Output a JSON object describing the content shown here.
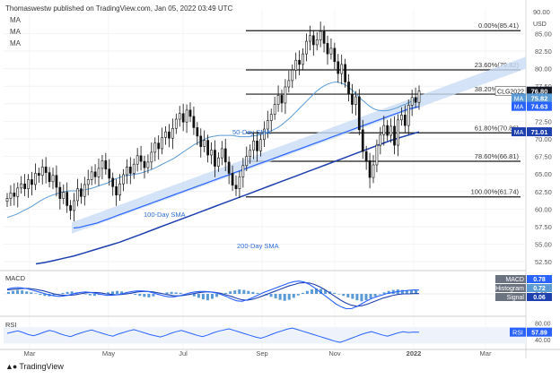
{
  "header": {
    "attribution": "Thomaswestw published on TradingView.com, Jan 05, 2022 03:49 UTC",
    "ma_labels": [
      "MA",
      "MA",
      "MA"
    ],
    "price_unit": "USD"
  },
  "logo": {
    "text": "TradingView"
  },
  "chart_data": {
    "type": "candlestick",
    "symbol": "CLG2022",
    "x_ticks": [
      "Mar",
      "May",
      "Jul",
      "Sep",
      "Nov",
      "2022",
      "Mar"
    ],
    "y_ticks": [
      "85.00",
      "82.50",
      "80.00",
      "77.50",
      "75.00",
      "72.50",
      "70.00",
      "67.50",
      "65.00",
      "62.50",
      "60.00",
      "57.50",
      "55.00",
      "52.50"
    ],
    "ylim": [
      51.5,
      88.5
    ],
    "fib_levels": [
      {
        "label": "0.00%(85.41)",
        "value": 85.41
      },
      {
        "label": "23.60%(79.82)",
        "value": 79.82
      },
      {
        "label": "38.20%(76.37)",
        "value": 76.37
      },
      {
        "label": "61.80%(70.86)",
        "value": 70.86
      },
      {
        "label": "78.60%(66.81)",
        "value": 66.81
      },
      {
        "label": "100.00%(61.74)",
        "value": 61.74
      }
    ],
    "annotations": {
      "sma50": "50-Day SMA",
      "sma100": "100-Day SMA",
      "sma200": "200-Day SMA"
    },
    "price_tags": [
      {
        "name": "CLG2022",
        "value": "76.80",
        "color": "#131722",
        "y": 76.8
      },
      {
        "name": "MA",
        "value": "75.82",
        "color": "#5b9bd5",
        "y": 75.82
      },
      {
        "name": "MA",
        "value": "74.63",
        "color": "#2962ff",
        "y": 74.63
      },
      {
        "name": "MA",
        "value": "71.01",
        "color": "#1e40af",
        "y": 71.01
      }
    ],
    "candles_close": [
      61.5,
      62.3,
      61.8,
      63.0,
      63.6,
      62.9,
      64.2,
      63.5,
      65.1,
      64.8,
      66.0,
      65.2,
      63.9,
      64.8,
      63.1,
      61.5,
      62.4,
      60.5,
      59.8,
      61.2,
      62.9,
      61.8,
      63.5,
      64.2,
      65.3,
      64.6,
      65.8,
      66.9,
      65.7,
      64.4,
      63.2,
      62.0,
      63.6,
      64.9,
      66.0,
      65.1,
      66.4,
      67.6,
      66.8,
      65.9,
      66.7,
      68.1,
      69.4,
      68.6,
      70.2,
      71.0,
      70.1,
      71.5,
      72.8,
      73.6,
      72.4,
      74.1,
      73.2,
      71.6,
      70.4,
      68.9,
      69.8,
      67.7,
      68.4,
      66.1,
      67.3,
      68.6,
      66.7,
      65.1,
      63.4,
      62.9,
      64.6,
      66.2,
      67.5,
      68.4,
      69.7,
      68.3,
      69.9,
      71.4,
      72.6,
      73.5,
      74.9,
      76.2,
      75.1,
      77.4,
      78.3,
      79.8,
      81.2,
      80.6,
      82.1,
      83.9,
      84.7,
      83.4,
      84.1,
      85.3,
      83.6,
      82.1,
      82.9,
      81.0,
      79.3,
      80.6,
      78.1,
      76.4,
      74.9,
      76.0,
      71.3,
      68.2,
      66.9,
      64.5,
      66.3,
      69.1,
      70.6,
      71.9,
      70.5,
      71.8,
      69.1,
      72.7,
      73.4,
      71.9,
      74.8,
      75.9,
      75.2,
      76.8
    ],
    "sma50": [
      58.8,
      59.0,
      59.2,
      59.5,
      59.8,
      60.1,
      60.4,
      60.8,
      61.2,
      61.5,
      61.8,
      62.0,
      62.2,
      62.4,
      62.5,
      62.6,
      62.6,
      62.6,
      62.7,
      62.8,
      62.9,
      63.1,
      63.3,
      63.5,
      63.7,
      64.0,
      64.3,
      64.5,
      64.7,
      64.8,
      64.9,
      65.0,
      65.1,
      65.3,
      65.5,
      65.7,
      66.0,
      66.3,
      66.6,
      66.9,
      67.2,
      67.6,
      68.0,
      68.4,
      68.8,
      69.2,
      69.5,
      69.8,
      70.1,
      70.3,
      70.4,
      70.5,
      70.5,
      70.5,
      70.5,
      70.4,
      70.3,
      70.3,
      70.3,
      70.4,
      70.5,
      70.6,
      70.8,
      71.0,
      71.3,
      71.6,
      72.0,
      72.5,
      73.0,
      73.6,
      74.2,
      74.8,
      75.4,
      76.0,
      76.6,
      77.1,
      77.5,
      77.8,
      78.0,
      78.1,
      78.0,
      77.8,
      77.4,
      76.9,
      76.3,
      75.7,
      75.2,
      74.7,
      74.3,
      74.1,
      74.0,
      74.0,
      74.1,
      74.3,
      74.5,
      74.8,
      75.0,
      75.3,
      75.6,
      75.8
    ],
    "sma100": [
      57.3,
      57.4,
      57.6,
      57.8,
      58.0,
      58.3,
      58.6,
      58.9,
      59.2,
      59.5,
      59.8,
      60.1,
      60.4,
      60.7,
      61.0,
      61.3,
      61.6,
      61.9,
      62.2,
      62.5,
      62.8,
      63.1,
      63.4,
      63.7,
      64.0,
      64.3,
      64.6,
      64.9,
      65.2,
      65.5,
      65.8,
      66.1,
      66.4,
      66.7,
      67.0,
      67.3,
      67.6,
      67.9,
      68.2,
      68.5,
      68.8,
      69.1,
      69.4,
      69.7,
      70.0,
      70.3,
      70.6,
      70.9,
      71.2,
      71.5,
      71.8,
      72.1,
      72.4,
      72.7,
      73.0,
      73.3,
      73.6,
      73.9,
      74.2,
      74.4,
      74.6
    ],
    "sma200": [
      52.2,
      52.4,
      52.7,
      53.0,
      53.3,
      53.7,
      54.1,
      54.5,
      54.9,
      55.3,
      55.8,
      56.3,
      56.8,
      57.3,
      57.8,
      58.3,
      58.8,
      59.3,
      59.8,
      60.3,
      60.8,
      61.3,
      61.8,
      62.3,
      62.8,
      63.3,
      63.8,
      64.3,
      64.8,
      65.3,
      65.8,
      66.3,
      66.8,
      67.3,
      67.8,
      68.3,
      68.8,
      69.3,
      69.8,
      70.2,
      70.6,
      71.0
    ],
    "macd": {
      "label": "MACD",
      "legend": [
        {
          "name": "MACD",
          "value": "0.78",
          "color": "#2962ff"
        },
        {
          "name": "Histogram",
          "value": "0.72",
          "color": "#5b9bd5"
        },
        {
          "name": "Signal",
          "value": "0.06",
          "color": "#1e40af"
        }
      ],
      "ticks": [
        "0.00"
      ],
      "hist": [
        0.4,
        0.6,
        0.8,
        0.7,
        0.5,
        0.3,
        0.1,
        -0.2,
        -0.4,
        -0.5,
        -0.3,
        -0.1,
        0.2,
        0.4,
        0.5,
        0.3,
        0.1,
        -0.1,
        -0.3,
        -0.4,
        -0.2,
        0.1,
        0.3,
        0.5,
        0.6,
        0.5,
        0.3,
        0.1,
        -0.2,
        -0.4,
        -0.6,
        -0.7,
        -0.5,
        -0.2,
        0.1,
        0.3,
        0.4,
        0.3,
        0.2,
        0.0,
        -0.2,
        -0.5,
        -0.8,
        -1.1,
        -1.3,
        -1.0,
        -0.6,
        -0.2,
        0.2,
        0.5,
        0.7,
        0.9,
        0.8,
        0.6,
        0.4,
        0.2,
        0.0,
        -0.3,
        -0.6,
        -0.9,
        -1.2,
        -1.4,
        -1.2,
        -0.8,
        -0.3,
        0.2,
        0.6,
        0.9,
        1.1,
        1.0,
        0.8,
        0.5,
        0.2,
        -0.1,
        -0.4,
        -0.7,
        -1.0,
        -1.3,
        -1.5,
        -1.3,
        -0.9,
        -0.5,
        -0.1,
        0.3,
        0.6,
        0.8,
        0.9,
        0.8,
        0.7,
        0.7,
        0.72
      ],
      "macd_line": [
        1.0,
        1.2,
        1.3,
        1.2,
        1.0,
        0.7,
        0.4,
        0.1,
        -0.2,
        -0.4,
        -0.5,
        -0.4,
        -0.2,
        0.1,
        0.3,
        0.4,
        0.3,
        0.1,
        -0.1,
        -0.3,
        -0.3,
        -0.2,
        0.0,
        0.3,
        0.5,
        0.6,
        0.6,
        0.5,
        0.2,
        -0.1,
        -0.4,
        -0.6,
        -0.6,
        -0.4,
        -0.1,
        0.2,
        0.4,
        0.5,
        0.5,
        0.4,
        0.2,
        -0.1,
        -0.5,
        -1.0,
        -1.4,
        -1.5,
        -1.2,
        -0.8,
        -0.3,
        0.2,
        0.6,
        1.0,
        1.4,
        1.8,
        2.2,
        2.5,
        2.6,
        2.4,
        1.9,
        1.2,
        0.4,
        -0.4,
        -1.2,
        -2.0,
        -2.6,
        -3.0,
        -3.0,
        -2.6,
        -2.0,
        -1.4,
        -0.9,
        -0.5,
        -0.2,
        0.1,
        0.3,
        0.5,
        0.6,
        0.7,
        0.8,
        0.78
      ],
      "signal_line": [
        0.8,
        0.9,
        1.0,
        1.1,
        1.1,
        1.0,
        0.8,
        0.6,
        0.3,
        0.0,
        -0.2,
        -0.3,
        -0.3,
        -0.2,
        0.0,
        0.2,
        0.3,
        0.3,
        0.2,
        0.0,
        -0.1,
        -0.2,
        -0.1,
        0.0,
        0.2,
        0.4,
        0.5,
        0.5,
        0.4,
        0.2,
        0.0,
        -0.2,
        -0.4,
        -0.4,
        -0.3,
        -0.1,
        0.1,
        0.3,
        0.4,
        0.4,
        0.3,
        0.1,
        -0.2,
        -0.5,
        -0.9,
        -1.2,
        -1.3,
        -1.1,
        -0.8,
        -0.4,
        0.0,
        0.4,
        0.8,
        1.2,
        1.6,
        1.9,
        2.2,
        2.3,
        2.2,
        1.9,
        1.4,
        0.8,
        0.1,
        -0.6,
        -1.3,
        -1.9,
        -2.3,
        -2.5,
        -2.4,
        -2.1,
        -1.7,
        -1.3,
        -0.9,
        -0.6,
        -0.3,
        -0.1,
        0.0,
        0.0,
        0.05,
        0.06
      ]
    },
    "rsi": {
      "label": "RSI",
      "legend": {
        "name": "RSI",
        "value": "57.89",
        "color": "#2962ff"
      },
      "ticks": [
        "80.00",
        "40.00"
      ],
      "values": [
        55,
        58,
        61,
        57,
        52,
        49,
        53,
        58,
        62,
        59,
        54,
        50,
        47,
        52,
        56,
        60,
        63,
        59,
        55,
        51,
        48,
        53,
        57,
        61,
        64,
        60,
        56,
        52,
        49,
        46,
        50,
        55,
        59,
        62,
        58,
        54,
        50,
        47,
        51,
        56,
        60,
        63,
        66,
        62,
        58,
        54,
        50,
        46,
        43,
        47,
        52,
        57,
        61,
        65,
        68,
        64,
        60,
        56,
        52,
        48,
        44,
        40,
        36,
        33,
        37,
        42,
        47,
        52,
        56,
        59,
        55,
        51,
        48,
        52,
        56,
        59,
        57,
        58,
        57.89
      ]
    }
  }
}
